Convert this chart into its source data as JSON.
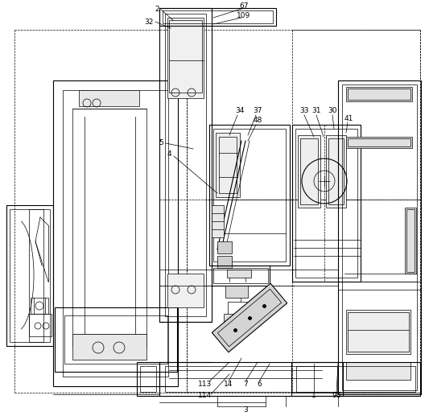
{
  "fig_width": 5.33,
  "fig_height": 5.17,
  "dpi": 100,
  "bg_color": "#ffffff",
  "lc": "#000000",
  "lw_thin": 0.5,
  "lw_med": 0.8,
  "lw_thick": 1.2,
  "font_size": 6.5
}
